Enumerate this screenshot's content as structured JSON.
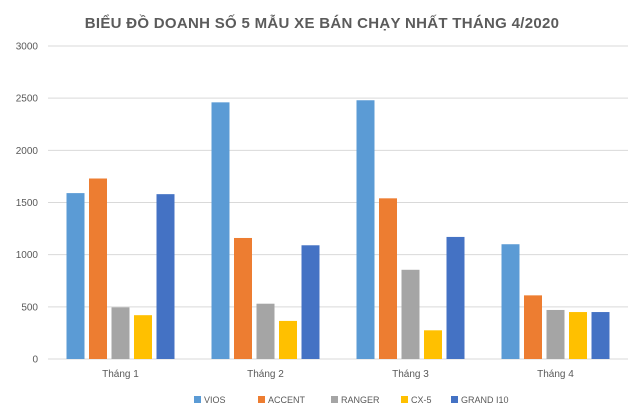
{
  "chart_data": {
    "type": "bar",
    "title": "BIỂU ĐỒ DOANH SỐ 5 MẪU XE BÁN CHẠY NHẤT THÁNG 4/2020",
    "categories": [
      "Tháng 1",
      "Tháng 2",
      "Tháng 3",
      "Tháng 4"
    ],
    "series": [
      {
        "name": "VIOS",
        "color": "#5b9bd5",
        "values": [
          1590,
          2460,
          2480,
          1100
        ]
      },
      {
        "name": "ACCENT",
        "color": "#ed7d31",
        "values": [
          1730,
          1160,
          1540,
          610
        ]
      },
      {
        "name": "RANGER",
        "color": "#a5a5a5",
        "values": [
          495,
          530,
          855,
          470
        ]
      },
      {
        "name": "CX-5",
        "color": "#ffc000",
        "values": [
          420,
          365,
          275,
          450
        ]
      },
      {
        "name": "GRAND I10",
        "color": "#4472c4",
        "values": [
          1580,
          1090,
          1170,
          450
        ]
      }
    ],
    "ylim": [
      0,
      3000
    ],
    "yticks": [
      0,
      500,
      1000,
      1500,
      2000,
      2500,
      3000
    ],
    "xlabel": "",
    "ylabel": "",
    "grid": true,
    "legend": "bottom"
  }
}
